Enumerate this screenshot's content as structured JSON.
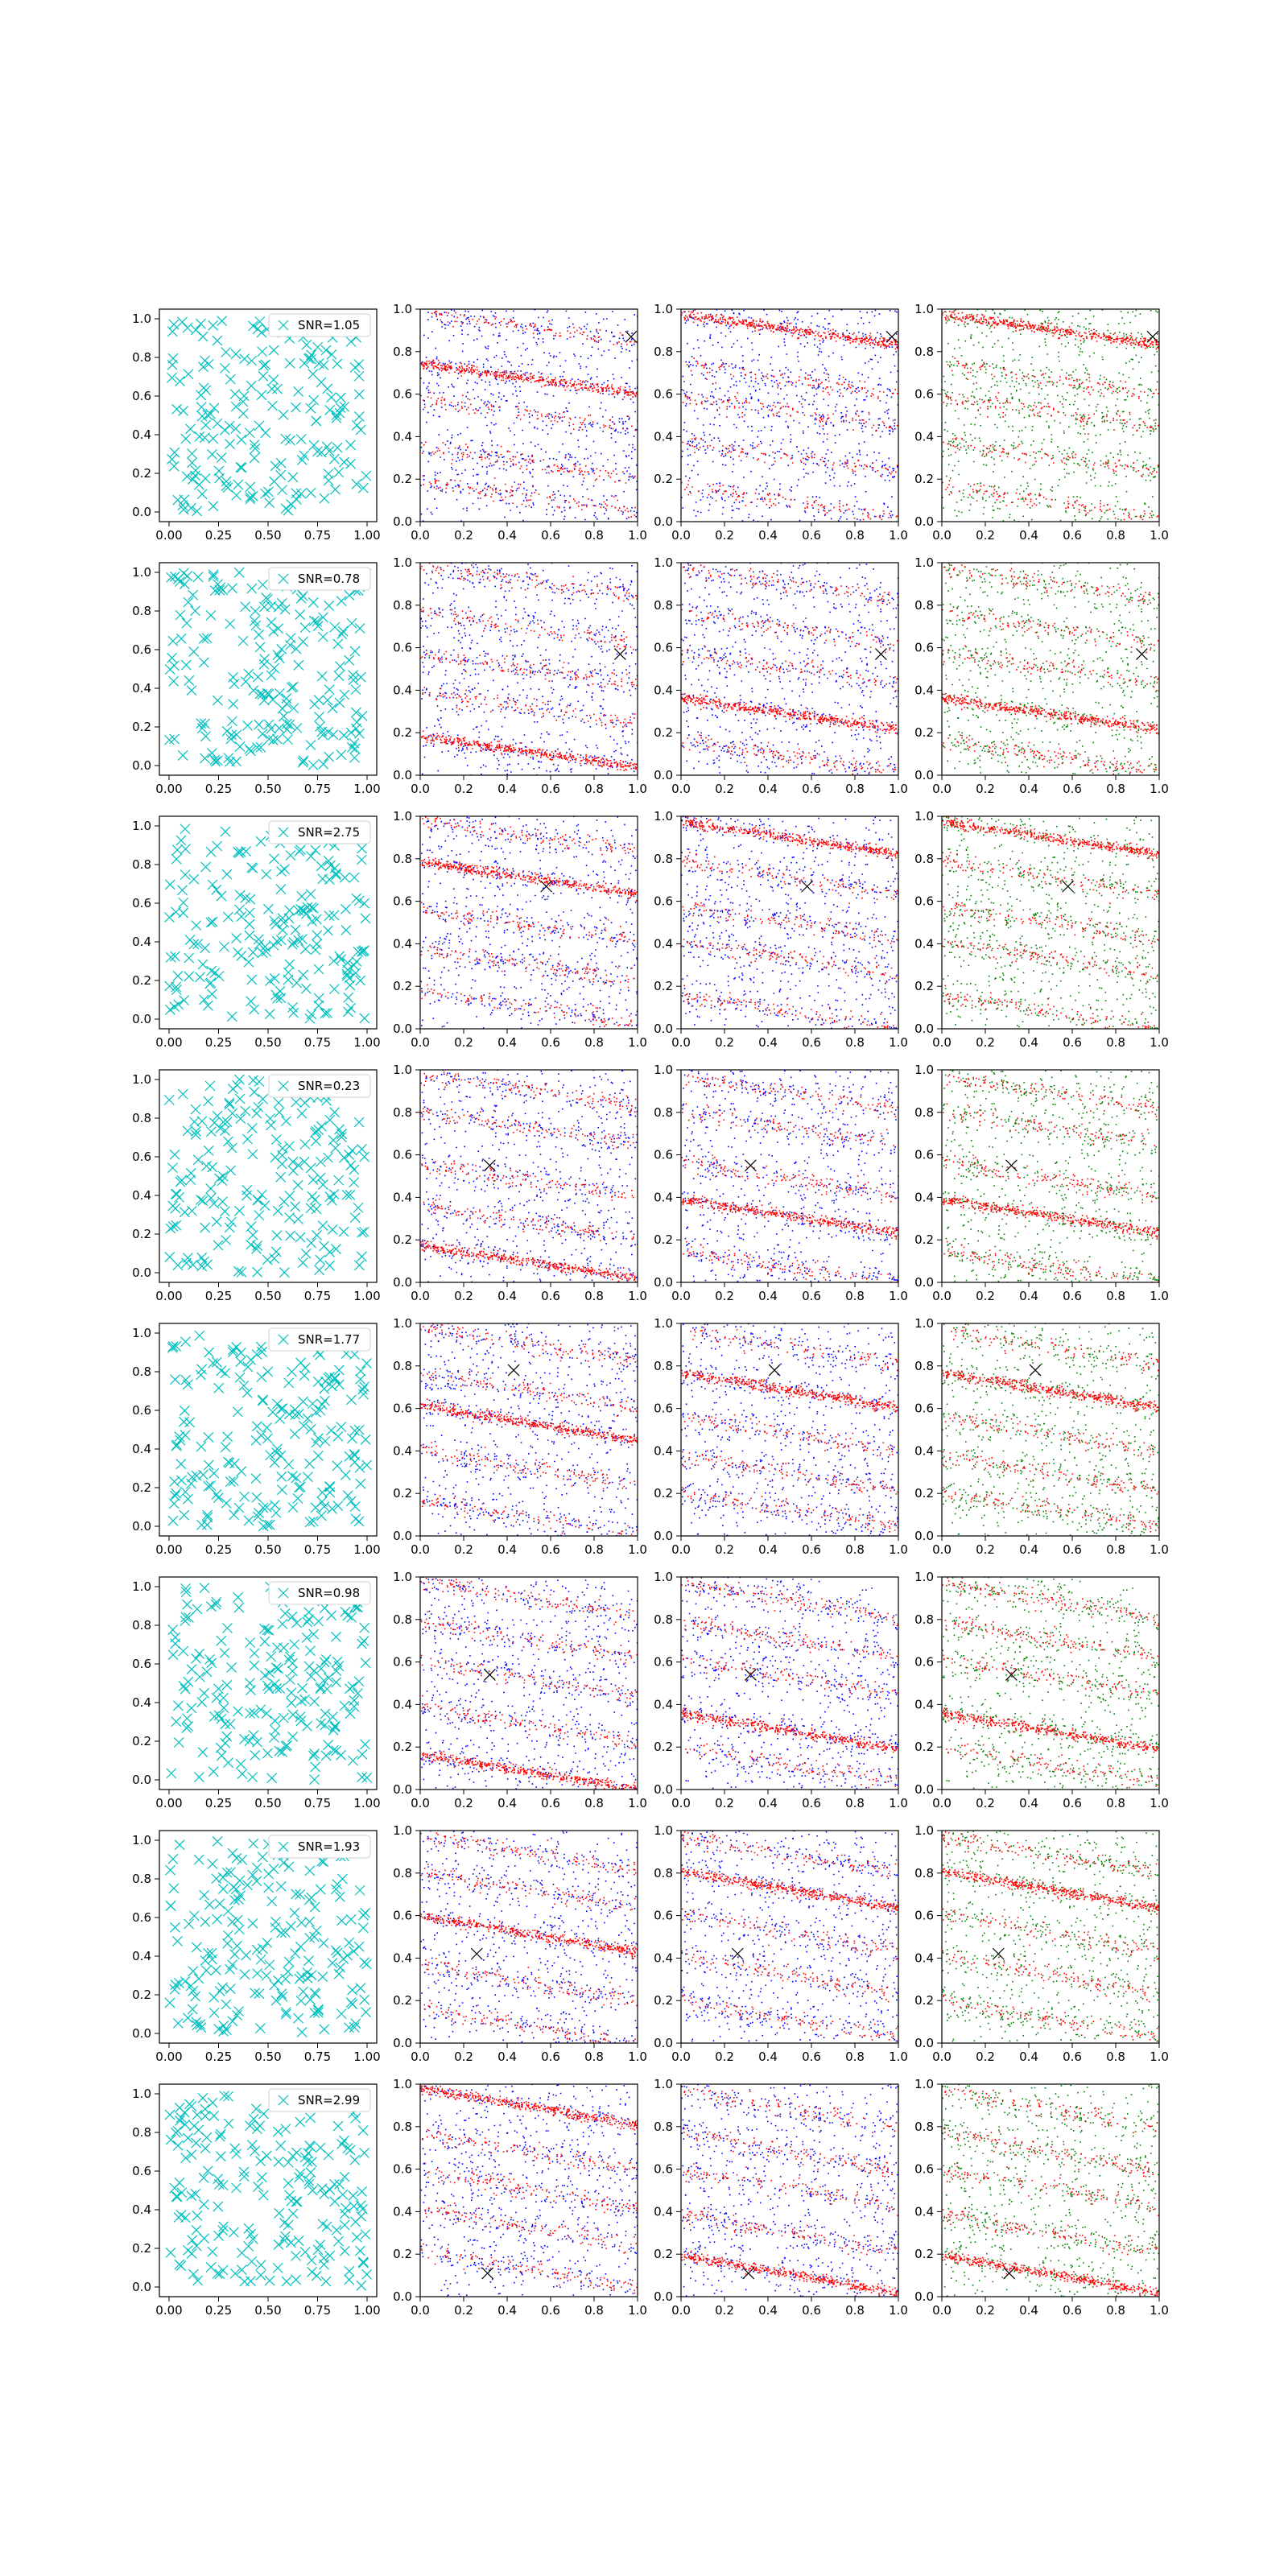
{
  "figure": {
    "rows": 8,
    "cols": 4
  },
  "colors": {
    "noise_marker": "#00bfbf",
    "red": "#ff0000",
    "blue": "#0000ff",
    "green": "#008000",
    "mark": "#000000"
  },
  "tick_labels": {
    "noise_x": [
      "0.00",
      "0.25",
      "0.50",
      "0.75",
      "1.00"
    ],
    "noise_y": [
      "0.0",
      "0.2",
      "0.4",
      "0.6",
      "0.8",
      "1.0"
    ],
    "scatter": [
      "0.0",
      "0.2",
      "0.4",
      "0.6",
      "0.8",
      "1.0"
    ]
  },
  "chart_data": [
    {
      "row": 1,
      "type": "scatter",
      "legend": "SNR=1.05",
      "legend_position": "upper right",
      "marker_x": [
        0.97,
        0.87
      ],
      "xlim": [
        0,
        1
      ],
      "ylim": [
        0,
        1
      ],
      "pattern": "diagonal stripes of red and blue points descending left to right",
      "columns": [
        "noise",
        "red/blue",
        "red/blue",
        "red/green"
      ]
    },
    {
      "row": 2,
      "type": "scatter",
      "legend": "SNR=0.78",
      "legend_position": "upper right",
      "marker_x": [
        0.92,
        0.57
      ],
      "xlim": [
        0,
        1
      ],
      "ylim": [
        0,
        1
      ],
      "columns": [
        "noise",
        "red/blue",
        "red/blue",
        "red/green"
      ]
    },
    {
      "row": 3,
      "type": "scatter",
      "legend": "SNR=2.75",
      "legend_position": "upper right",
      "marker_x": [
        0.58,
        0.67
      ],
      "xlim": [
        0,
        1
      ],
      "ylim": [
        0,
        1
      ],
      "columns": [
        "noise",
        "red/blue",
        "red/blue",
        "red/green"
      ]
    },
    {
      "row": 4,
      "type": "scatter",
      "legend": "SNR=0.23",
      "legend_position": "upper right",
      "marker_x": [
        0.32,
        0.55
      ],
      "xlim": [
        0,
        1
      ],
      "ylim": [
        0,
        1
      ],
      "columns": [
        "noise",
        "red/blue",
        "red/blue",
        "red/green"
      ]
    },
    {
      "row": 5,
      "type": "scatter",
      "legend": "SNR=1.77",
      "legend_position": "upper right",
      "marker_x": [
        0.43,
        0.78
      ],
      "xlim": [
        0,
        1
      ],
      "ylim": [
        0,
        1
      ],
      "columns": [
        "noise",
        "red/blue",
        "red/blue",
        "red/green"
      ]
    },
    {
      "row": 6,
      "type": "scatter",
      "legend": "SNR=0.98",
      "legend_position": "upper right",
      "marker_x": [
        0.32,
        0.54
      ],
      "xlim": [
        0,
        1
      ],
      "ylim": [
        0,
        1
      ],
      "columns": [
        "noise",
        "red/blue",
        "red/blue",
        "red/green"
      ]
    },
    {
      "row": 7,
      "type": "scatter",
      "legend": "SNR=1.93",
      "legend_position": "upper right",
      "marker_x": [
        0.26,
        0.42
      ],
      "xlim": [
        0,
        1
      ],
      "ylim": [
        0,
        1
      ],
      "columns": [
        "noise",
        "red/blue",
        "red/blue",
        "red/green"
      ]
    },
    {
      "row": 8,
      "type": "scatter",
      "legend": "SNR=2.99",
      "legend_position": "upper right",
      "marker_x": [
        0.31,
        0.11
      ],
      "xlim": [
        0,
        1
      ],
      "ylim": [
        0,
        1
      ],
      "columns": [
        "noise",
        "red/blue",
        "red/blue",
        "red/green"
      ]
    }
  ]
}
